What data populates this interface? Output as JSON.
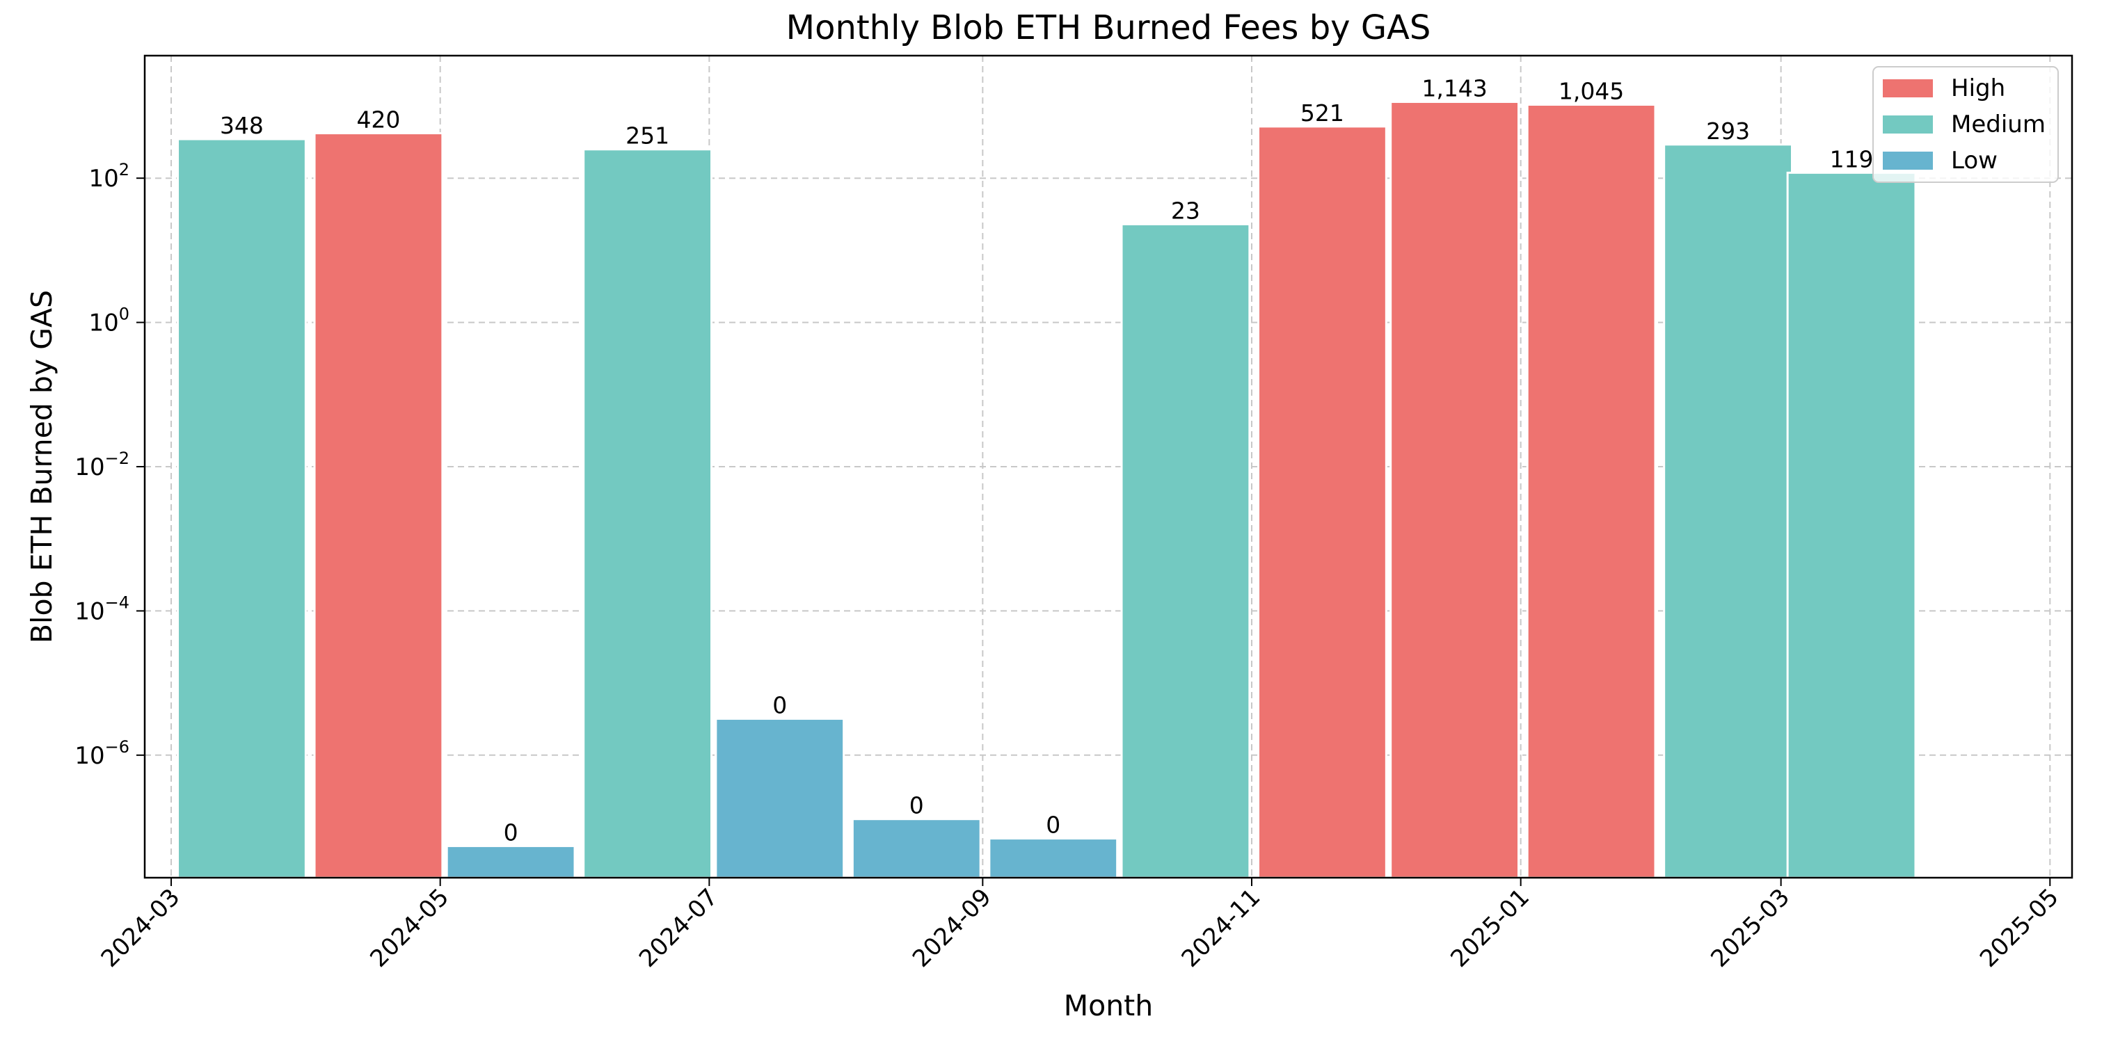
{
  "chart_data": {
    "type": "bar",
    "title": "Monthly Blob ETH Burned Fees by GAS",
    "xlabel": "Month",
    "ylabel": "Blob ETH Burned by GAS",
    "yscale": "log",
    "ylim": [
      2e-08,
      5000
    ],
    "xlim": [
      "2024-02-24",
      "2025-05-06"
    ],
    "grid": true,
    "legend_position": "top-right",
    "x_ticks": [
      "2024-03",
      "2024-05",
      "2024-07",
      "2024-09",
      "2024-11",
      "2025-01",
      "2025-03",
      "2025-05"
    ],
    "y_ticks": [
      {
        "value": 100,
        "base": "10",
        "exp": "2"
      },
      {
        "value": 1,
        "base": "10",
        "exp": "0"
      },
      {
        "value": 0.01,
        "base": "10",
        "exp": "−2"
      },
      {
        "value": 0.0001,
        "base": "10",
        "exp": "−4"
      },
      {
        "value": 1e-06,
        "base": "10",
        "exp": "−6"
      }
    ],
    "series_colors": {
      "High": "#ee7370",
      "Medium": "#73c9c1",
      "Low": "#67b4cf"
    },
    "legend": [
      "High",
      "Medium",
      "Low"
    ],
    "bars": [
      {
        "month": "2024-03",
        "category": "Medium",
        "value": 348,
        "label": "348"
      },
      {
        "month": "2024-04",
        "category": "High",
        "value": 420,
        "label": "420"
      },
      {
        "month": "2024-05",
        "category": "Low",
        "value": 5.5e-08,
        "label": "0"
      },
      {
        "month": "2024-06",
        "category": "Medium",
        "value": 251,
        "label": "251"
      },
      {
        "month": "2024-07",
        "category": "Low",
        "value": 3.2e-06,
        "label": "0"
      },
      {
        "month": "2024-08",
        "category": "Low",
        "value": 1.3e-07,
        "label": "0"
      },
      {
        "month": "2024-09",
        "category": "Low",
        "value": 7e-08,
        "label": "0"
      },
      {
        "month": "2024-10",
        "category": "Medium",
        "value": 23,
        "label": "23"
      },
      {
        "month": "2024-11",
        "category": "High",
        "value": 521,
        "label": "521"
      },
      {
        "month": "2024-12",
        "category": "High",
        "value": 1143,
        "label": "1,143"
      },
      {
        "month": "2025-01",
        "category": "High",
        "value": 1045,
        "label": "1,045"
      },
      {
        "month": "2025-02",
        "category": "Medium",
        "value": 293,
        "label": "293"
      },
      {
        "month": "2025-03",
        "category": "Medium",
        "value": 119,
        "label": "119"
      }
    ]
  }
}
